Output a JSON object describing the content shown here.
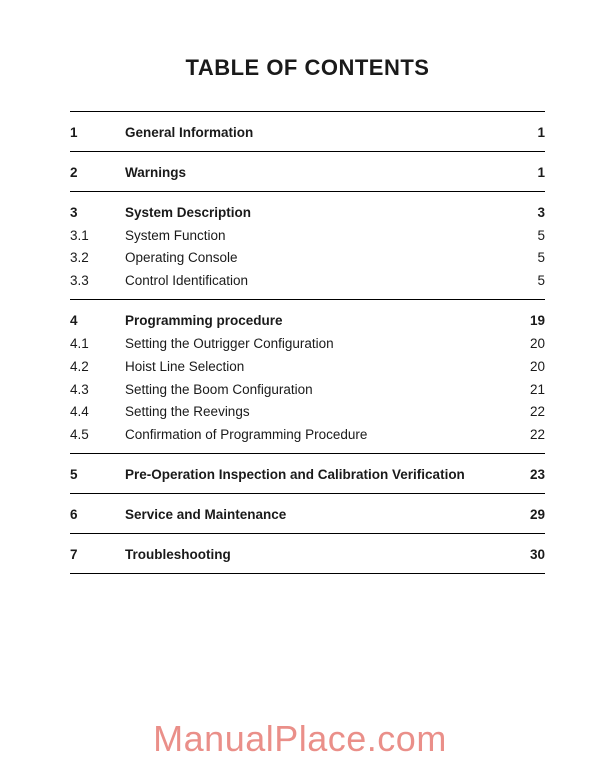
{
  "title": "TABLE OF CONTENTS",
  "watermark": "ManualPlace.com",
  "sections": [
    {
      "rows": [
        {
          "num": "1",
          "label": "General Information",
          "page": "1",
          "bold": true
        }
      ]
    },
    {
      "rows": [
        {
          "num": "2",
          "label": "Warnings",
          "page": "1",
          "bold": true
        }
      ]
    },
    {
      "rows": [
        {
          "num": "3",
          "label": "System Description",
          "page": "3",
          "bold": true
        },
        {
          "num": "3.1",
          "label": "System Function",
          "page": "5",
          "bold": false
        },
        {
          "num": "3.2",
          "label": "Operating Console",
          "page": "5",
          "bold": false
        },
        {
          "num": "3.3",
          "label": "Control Identification",
          "page": "5",
          "bold": false
        }
      ]
    },
    {
      "rows": [
        {
          "num": "4",
          "label": "Programming procedure",
          "page": "19",
          "bold": true
        },
        {
          "num": "4.1",
          "label": "Setting the Outrigger Configuration",
          "page": "20",
          "bold": false
        },
        {
          "num": "4.2",
          "label": "Hoist Line Selection",
          "page": "20",
          "bold": false
        },
        {
          "num": "4.3",
          "label": "Setting the Boom Configuration",
          "page": "21",
          "bold": false
        },
        {
          "num": "4.4",
          "label": "Setting the Reevings",
          "page": "22",
          "bold": false
        },
        {
          "num": "4.5",
          "label": "Confirmation of Programming Procedure",
          "page": "22",
          "bold": false
        }
      ]
    },
    {
      "rows": [
        {
          "num": "5",
          "label": "Pre-Operation Inspection and Calibration Verification",
          "page": "23",
          "bold": true
        }
      ]
    },
    {
      "rows": [
        {
          "num": "6",
          "label": "Service and Maintenance",
          "page": "29",
          "bold": true
        }
      ]
    },
    {
      "rows": [
        {
          "num": "7",
          "label": "Troubleshooting",
          "page": "30",
          "bold": true
        }
      ]
    }
  ]
}
